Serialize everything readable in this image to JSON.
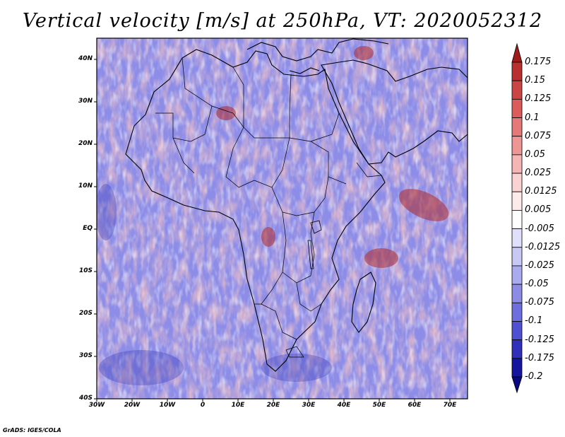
{
  "title": "Vertical velocity [m/s] at 250hPa, VT: 2020052312",
  "credit": "GrADS: IGES/COLA",
  "map": {
    "lon_range": [
      -30,
      75
    ],
    "lat_range": [
      -40,
      45
    ],
    "lat_ticks": [
      {
        "value": 40,
        "label": "40N"
      },
      {
        "value": 30,
        "label": "30N"
      },
      {
        "value": 20,
        "label": "20N"
      },
      {
        "value": 10,
        "label": "10N"
      },
      {
        "value": 0,
        "label": "EQ"
      },
      {
        "value": -10,
        "label": "10S"
      },
      {
        "value": -20,
        "label": "20S"
      },
      {
        "value": -30,
        "label": "30S"
      },
      {
        "value": -40,
        "label": "40S"
      }
    ],
    "lon_ticks": [
      {
        "value": -30,
        "label": "30W"
      },
      {
        "value": -20,
        "label": "20W"
      },
      {
        "value": -10,
        "label": "10W"
      },
      {
        "value": 0,
        "label": "0"
      },
      {
        "value": 10,
        "label": "10E"
      },
      {
        "value": 20,
        "label": "20E"
      },
      {
        "value": 30,
        "label": "30E"
      },
      {
        "value": 40,
        "label": "40E"
      },
      {
        "value": 50,
        "label": "50E"
      },
      {
        "value": 60,
        "label": "60E"
      },
      {
        "value": 70,
        "label": "70E"
      }
    ]
  },
  "colorbar": {
    "labels": [
      "0.175",
      "0.15",
      "0.125",
      "0.1",
      "0.075",
      "0.05",
      "0.025",
      "0.0125",
      "0.005",
      "-0.005",
      "-0.0125",
      "-0.025",
      "-0.05",
      "-0.075",
      "-0.1",
      "-0.125",
      "-0.175",
      "-0.2"
    ],
    "colors": [
      "#a01a1a",
      "#b83030",
      "#cc4545",
      "#dc5c5c",
      "#e57878",
      "#ee9696",
      "#f5b5b5",
      "#fad2d2",
      "#fdeaea",
      "#ffffff",
      "#e0e0fa",
      "#c8c8f5",
      "#aaaaee",
      "#8c8ce6",
      "#6e6ede",
      "#5050d2",
      "#3030bb",
      "#1515a0",
      "#080880"
    ]
  },
  "colors": {
    "positive": "#d84a4a",
    "negative": "#5555dd",
    "border": "#000000"
  }
}
